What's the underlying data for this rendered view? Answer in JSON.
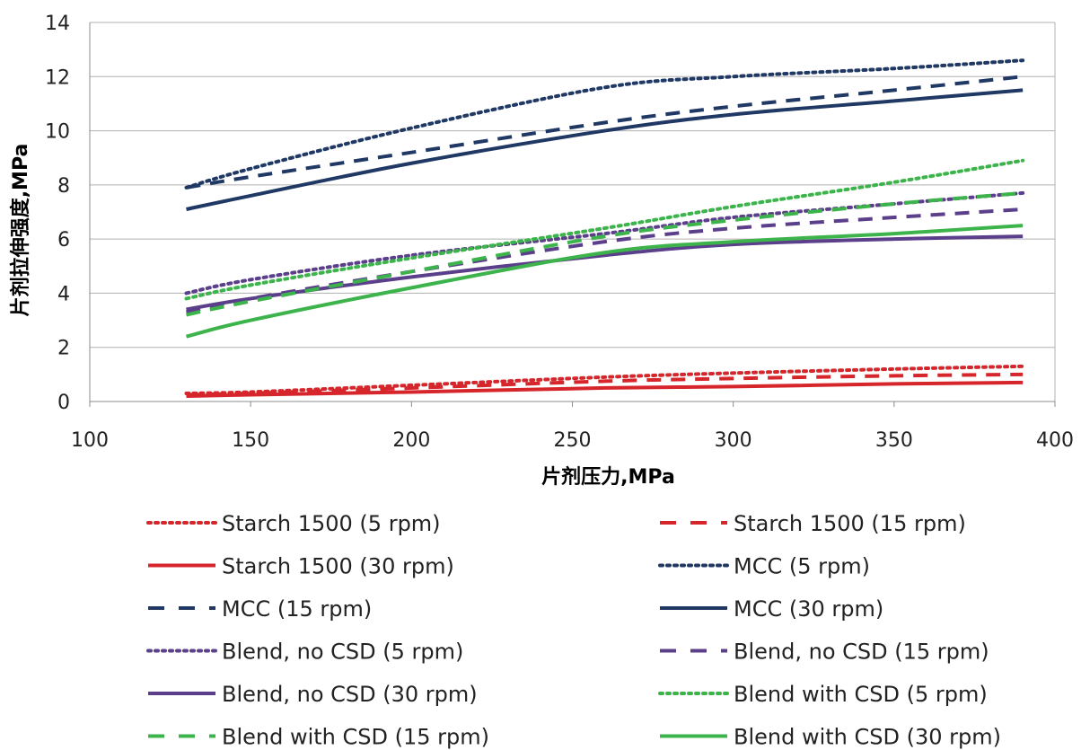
{
  "chart_data": {
    "type": "line",
    "xlabel": "片剂压力,MPa",
    "ylabel": "片剂拉伸强度,MPa",
    "xlim": [
      100,
      400
    ],
    "ylim": [
      0,
      14
    ],
    "x_ticks": [
      100,
      150,
      200,
      250,
      300,
      350,
      400
    ],
    "y_ticks": [
      0,
      2,
      4,
      6,
      8,
      10,
      12,
      14
    ],
    "grid": "horizontal",
    "legend_position": "bottom",
    "series": [
      {
        "name": "Starch 1500 (5 rpm)",
        "color": "#d6262b",
        "dash": "dotted",
        "x": [
          130,
          150,
          200,
          260,
          300,
          350,
          390
        ],
        "y": [
          0.3,
          0.35,
          0.6,
          0.9,
          1.05,
          1.2,
          1.3
        ]
      },
      {
        "name": "Starch 1500 (15 rpm)",
        "color": "#d6262b",
        "dash": "dashed",
        "x": [
          130,
          150,
          200,
          260,
          300,
          350,
          390
        ],
        "y": [
          0.25,
          0.3,
          0.5,
          0.75,
          0.85,
          0.95,
          1.0
        ]
      },
      {
        "name": "Starch 1500 (30 rpm)",
        "color": "#d6262b",
        "dash": "solid",
        "x": [
          130,
          150,
          200,
          260,
          300,
          350,
          390
        ],
        "y": [
          0.2,
          0.25,
          0.35,
          0.5,
          0.55,
          0.65,
          0.7
        ]
      },
      {
        "name": "MCC (5 rpm)",
        "color": "#1f3864",
        "dash": "dotted",
        "x": [
          130,
          150,
          200,
          260,
          300,
          350,
          390
        ],
        "y": [
          7.9,
          8.6,
          10.1,
          11.6,
          12.0,
          12.3,
          12.6
        ]
      },
      {
        "name": "MCC (15 rpm)",
        "color": "#1f3864",
        "dash": "dashed",
        "x": [
          130,
          150,
          200,
          260,
          300,
          350,
          390
        ],
        "y": [
          7.9,
          8.3,
          9.2,
          10.3,
          10.9,
          11.5,
          12.0
        ]
      },
      {
        "name": "MCC (30 rpm)",
        "color": "#1f3864",
        "dash": "solid",
        "x": [
          130,
          150,
          200,
          260,
          300,
          350,
          390
        ],
        "y": [
          7.1,
          7.6,
          8.8,
          10.0,
          10.6,
          11.1,
          11.5
        ]
      },
      {
        "name": "Blend, no CSD (5 rpm)",
        "color": "#5b3f8a",
        "dash": "dotted",
        "x": [
          130,
          150,
          200,
          260,
          300,
          350,
          390
        ],
        "y": [
          4.0,
          4.5,
          5.4,
          6.2,
          6.8,
          7.3,
          7.7
        ]
      },
      {
        "name": "Blend, no CSD (15 rpm)",
        "color": "#5b3f8a",
        "dash": "dashed",
        "x": [
          130,
          150,
          200,
          260,
          300,
          350,
          390
        ],
        "y": [
          3.3,
          3.8,
          4.8,
          5.9,
          6.4,
          6.8,
          7.1
        ]
      },
      {
        "name": "Blend, no CSD (30 rpm)",
        "color": "#5b3f8a",
        "dash": "solid",
        "x": [
          130,
          150,
          200,
          260,
          300,
          350,
          390
        ],
        "y": [
          3.4,
          3.8,
          4.6,
          5.4,
          5.8,
          6.0,
          6.1
        ]
      },
      {
        "name": "Blend with CSD (5 rpm)",
        "color": "#3cb44b",
        "dash": "dotted",
        "x": [
          130,
          150,
          200,
          260,
          300,
          350,
          390
        ],
        "y": [
          3.8,
          4.3,
          5.3,
          6.4,
          7.2,
          8.1,
          8.9
        ]
      },
      {
        "name": "Blend with CSD (15 rpm)",
        "color": "#3cb44b",
        "dash": "dashed",
        "x": [
          130,
          150,
          200,
          260,
          300,
          350,
          390
        ],
        "y": [
          3.2,
          3.7,
          4.8,
          6.1,
          6.7,
          7.3,
          7.7
        ]
      },
      {
        "name": "Blend with CSD (30 rpm)",
        "color": "#3cb44b",
        "dash": "solid",
        "x": [
          130,
          150,
          200,
          260,
          300,
          350,
          390
        ],
        "y": [
          2.4,
          3.0,
          4.2,
          5.5,
          5.9,
          6.2,
          6.5
        ]
      }
    ]
  }
}
